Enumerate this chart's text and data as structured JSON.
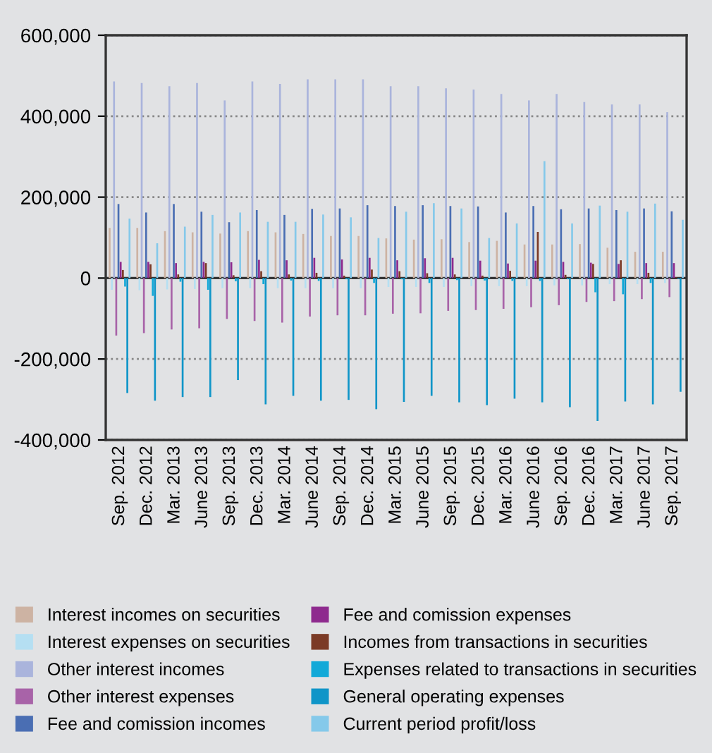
{
  "chart_data": {
    "type": "bar",
    "categories": [
      "Sep. 2012",
      "Dec. 2012",
      "Mar. 2013",
      "June 2013",
      "Sep. 2013",
      "Dec. 2013",
      "Mar. 2014",
      "June 2014",
      "Sep. 2014",
      "Dec. 2014",
      "Mar. 2015",
      "June 2015",
      "Sep. 2015",
      "Dec. 2015",
      "Mar. 2016",
      "June 2016",
      "Sep. 2016",
      "Dec. 2016",
      "Mar. 2017",
      "June 2017",
      "Sep. 2017"
    ],
    "series": [
      {
        "name": "Interest incomes on securities",
        "color": "#cdb3a3",
        "values": [
          124000,
          124000,
          116000,
          113000,
          110000,
          116000,
          113000,
          109000,
          104000,
          104000,
          98000,
          95000,
          96000,
          89000,
          92000,
          83000,
          83000,
          84000,
          75000,
          65000,
          65000
        ]
      },
      {
        "name": "Interest expenses on securities",
        "color": "#b5dff2",
        "values": [
          -29000,
          -30000,
          -28000,
          -27000,
          -25000,
          -25000,
          -25000,
          -25000,
          -25000,
          -25000,
          -22000,
          -22000,
          -22000,
          -20000,
          -20000,
          -20000,
          -18000,
          -18000,
          -15000,
          -15000,
          -12000
        ]
      },
      {
        "name": "Other interest incomes",
        "color": "#aab4dc",
        "values": [
          486000,
          482000,
          474000,
          482000,
          439000,
          486000,
          480000,
          491000,
          491000,
          491000,
          474000,
          474000,
          469000,
          466000,
          455000,
          439000,
          455000,
          435000,
          429000,
          429000,
          410000
        ]
      },
      {
        "name": "Other interest expenses",
        "color": "#a863a8",
        "values": [
          -142000,
          -136000,
          -127000,
          -124000,
          -101000,
          -106000,
          -110000,
          -95000,
          -92000,
          -92000,
          -88000,
          -87000,
          -81000,
          -79000,
          -76000,
          -72000,
          -67000,
          -59000,
          -57000,
          -52000,
          -47000
        ]
      },
      {
        "name": "Fee and comission incomes",
        "color": "#4a6eb3",
        "values": [
          183000,
          162000,
          183000,
          164000,
          138000,
          168000,
          156000,
          171000,
          172000,
          180000,
          178000,
          180000,
          178000,
          177000,
          162000,
          178000,
          170000,
          172000,
          168000,
          172000,
          165000
        ]
      },
      {
        "name": "Fee and comission expenses",
        "color": "#8e2a8e",
        "values": [
          40000,
          40000,
          37000,
          40000,
          39000,
          45000,
          44000,
          50000,
          46000,
          50000,
          44000,
          49000,
          50000,
          43000,
          36000,
          43000,
          40000,
          38000,
          35000,
          37000,
          37000
        ]
      },
      {
        "name": "Incomes from transactions in securities",
        "color": "#7b3a26",
        "values": [
          20000,
          34000,
          9000,
          37000,
          7000,
          17000,
          9000,
          13000,
          6000,
          21000,
          17000,
          12000,
          9000,
          6000,
          18000,
          114000,
          8000,
          35000,
          44000,
          13000,
          2000
        ]
      },
      {
        "name": "Expenses related to transactions in securities",
        "color": "#12a9d8",
        "values": [
          -21000,
          -44000,
          -9000,
          -29000,
          -8000,
          -15000,
          -6000,
          -7000,
          -3000,
          -12000,
          -3000,
          -12000,
          -5000,
          -6000,
          -7000,
          -7000,
          -3000,
          -35000,
          -40000,
          -12000,
          -2000
        ]
      },
      {
        "name": "General operating expenses",
        "color": "#0f95c8",
        "values": [
          -284000,
          -303000,
          -294000,
          -294000,
          -252000,
          -312000,
          -291000,
          -303000,
          -301000,
          -324000,
          -306000,
          -291000,
          -307000,
          -314000,
          -298000,
          -307000,
          -319000,
          -353000,
          -305000,
          -312000,
          -281000
        ]
      },
      {
        "name": "Current period profit/loss",
        "color": "#85c9ea",
        "values": [
          147000,
          86000,
          127000,
          156000,
          162000,
          139000,
          139000,
          157000,
          150000,
          99000,
          164000,
          185000,
          172000,
          99000,
          135000,
          289000,
          135000,
          179000,
          164000,
          184000,
          144000
        ]
      }
    ],
    "ylim": [
      -400000,
      600000
    ],
    "yticks": [
      {
        "value": -400000,
        "label": "-400,000"
      },
      {
        "value": -200000,
        "label": "-200,000"
      },
      0,
      {
        "value": 200000,
        "label": "200,000"
      },
      {
        "value": 400000,
        "label": "400,000"
      },
      {
        "value": 600000,
        "label": "600,000"
      }
    ],
    "grid": "y",
    "legend": "bottom"
  }
}
